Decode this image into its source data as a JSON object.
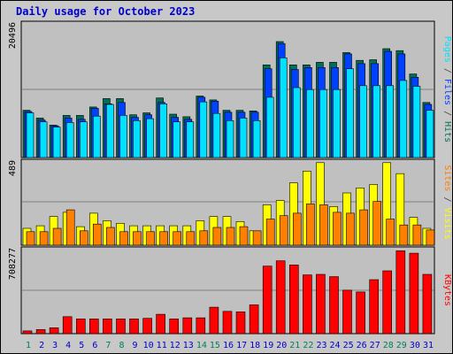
{
  "title": "Daily usage for October 2023",
  "colors": {
    "pages": "#00e0ff",
    "files": "#0040ff",
    "hits": "#006f58",
    "sites": "#ff8000",
    "visits": "#ffff00",
    "kbytes": "#ff0000",
    "plot_bg": "#c0c0c0",
    "weekend_label": "#00805c",
    "weekday_label": "#0000cc"
  },
  "chart_data": [
    {
      "type": "bar",
      "panel": "hits",
      "y_tick_label": "20496",
      "ylim": [
        0,
        20496
      ],
      "grid": true,
      "right_label": [
        {
          "text": "Pages",
          "color_key": "pages"
        },
        {
          "text": " / ",
          "color_key": "sep"
        },
        {
          "text": "Files",
          "color_key": "files"
        },
        {
          "text": " / ",
          "color_key": "sep"
        },
        {
          "text": "Hits",
          "color_key": "hits"
        }
      ],
      "categories": [
        "1",
        "2",
        "3",
        "4",
        "5",
        "6",
        "7",
        "8",
        "9",
        "10",
        "11",
        "12",
        "13",
        "14",
        "15",
        "16",
        "17",
        "18",
        "19",
        "20",
        "21",
        "22",
        "23",
        "24",
        "25",
        "26",
        "27",
        "28",
        "29",
        "30",
        "31"
      ],
      "series": [
        {
          "name": "Hits",
          "color_key": "hits",
          "values": [
            7300,
            6100,
            5000,
            6500,
            6500,
            7800,
            9100,
            9100,
            6600,
            6900,
            9200,
            6700,
            6300,
            9500,
            8900,
            7300,
            7300,
            7200,
            14300,
            17900,
            14300,
            14300,
            14700,
            14700,
            16200,
            15000,
            15100,
            16800,
            16500,
            12900,
            8500
          ]
        },
        {
          "name": "Files",
          "color_key": "files",
          "values": [
            7100,
            5800,
            4900,
            6100,
            5900,
            7600,
            8300,
            8500,
            6200,
            6600,
            8500,
            6200,
            5900,
            9300,
            8700,
            7000,
            7000,
            7000,
            13700,
            17600,
            13600,
            13900,
            13900,
            13900,
            16000,
            14500,
            14500,
            16400,
            16000,
            12400,
            8200
          ]
        },
        {
          "name": "Pages",
          "color_key": "pages",
          "values": [
            6900,
            5500,
            4700,
            5400,
            5500,
            6400,
            8200,
            6500,
            5700,
            6000,
            8300,
            5500,
            5500,
            8600,
            6800,
            5700,
            6100,
            5700,
            9300,
            15400,
            10800,
            10500,
            10500,
            10500,
            13700,
            11100,
            11100,
            11100,
            11900,
            11000,
            7300
          ]
        }
      ]
    },
    {
      "type": "bar",
      "panel": "visits",
      "y_tick_label": "489",
      "ylim": [
        0,
        489
      ],
      "grid": true,
      "right_label": [
        {
          "text": "Sites",
          "color_key": "sites"
        },
        {
          "text": " / ",
          "color_key": "sep"
        },
        {
          "text": "Visits",
          "color_key": "visits"
        }
      ],
      "categories": [
        "1",
        "2",
        "3",
        "4",
        "5",
        "6",
        "7",
        "8",
        "9",
        "10",
        "11",
        "12",
        "13",
        "14",
        "15",
        "16",
        "17",
        "18",
        "19",
        "20",
        "21",
        "22",
        "23",
        "24",
        "25",
        "26",
        "27",
        "28",
        "29",
        "30",
        "31"
      ],
      "series": [
        {
          "name": "Visits",
          "color_key": "visits",
          "values": [
            100,
            115,
            170,
            195,
            110,
            190,
            145,
            130,
            115,
            115,
            115,
            115,
            115,
            145,
            170,
            170,
            140,
            85,
            240,
            265,
            370,
            440,
            490,
            230,
            310,
            340,
            360,
            490,
            425,
            165,
            100
          ]
        },
        {
          "name": "Sites",
          "color_key": "sites",
          "values": [
            80,
            80,
            100,
            210,
            85,
            125,
            105,
            80,
            80,
            80,
            80,
            80,
            80,
            85,
            105,
            105,
            110,
            85,
            155,
            175,
            190,
            245,
            240,
            195,
            190,
            210,
            260,
            155,
            120,
            120,
            90
          ]
        }
      ]
    },
    {
      "type": "bar",
      "panel": "kbytes",
      "y_tick_label": "708277",
      "ylim": [
        0,
        708277
      ],
      "grid": true,
      "right_label": [
        {
          "text": "KBytes",
          "color_key": "kbytes"
        }
      ],
      "categories": [
        "1",
        "2",
        "3",
        "4",
        "5",
        "6",
        "7",
        "8",
        "9",
        "10",
        "11",
        "12",
        "13",
        "14",
        "15",
        "16",
        "17",
        "18",
        "19",
        "20",
        "21",
        "22",
        "23",
        "24",
        "25",
        "26",
        "27",
        "28",
        "29",
        "30",
        "31"
      ],
      "series": [
        {
          "name": "KBytes",
          "color_key": "kbytes",
          "values": [
            23000,
            35000,
            50000,
            145000,
            125000,
            125000,
            125000,
            125000,
            125000,
            130000,
            165000,
            125000,
            135000,
            135000,
            225000,
            190000,
            185000,
            245000,
            575000,
            620000,
            585000,
            500000,
            505000,
            485000,
            370000,
            355000,
            460000,
            535000,
            705000,
            685000,
            505000
          ]
        }
      ]
    }
  ],
  "x_axis": {
    "labels": [
      "1",
      "2",
      "3",
      "4",
      "5",
      "6",
      "7",
      "8",
      "9",
      "10",
      "11",
      "12",
      "13",
      "14",
      "15",
      "16",
      "17",
      "18",
      "19",
      "20",
      "21",
      "22",
      "23",
      "24",
      "25",
      "26",
      "27",
      "28",
      "29",
      "30",
      "31"
    ],
    "weekend_days": [
      "1",
      "7",
      "8",
      "14",
      "15",
      "21",
      "22",
      "28",
      "29"
    ]
  }
}
